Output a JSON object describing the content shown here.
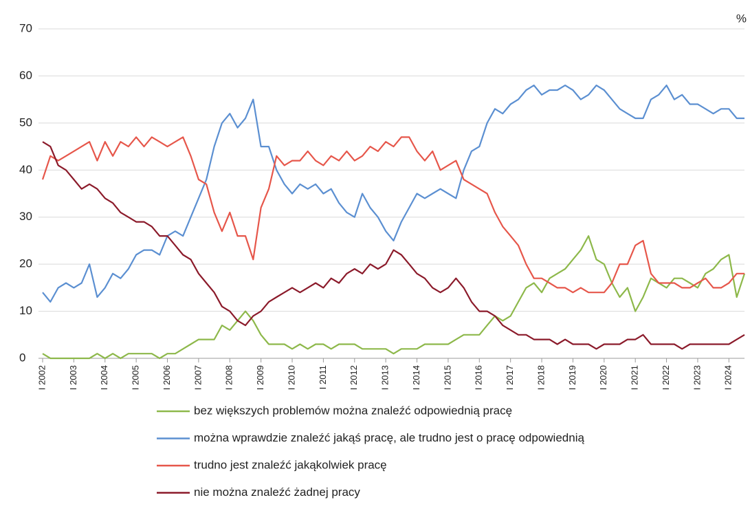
{
  "chart_data": {
    "type": "line",
    "unit_label": "%",
    "x": [
      2002,
      2002.25,
      2002.5,
      2002.75,
      2003,
      2003.25,
      2003.5,
      2003.75,
      2004,
      2004.25,
      2004.5,
      2004.75,
      2005,
      2005.25,
      2005.5,
      2005.75,
      2006,
      2006.25,
      2006.5,
      2006.75,
      2007,
      2007.25,
      2007.5,
      2007.75,
      2008,
      2008.25,
      2008.5,
      2008.75,
      2009,
      2009.25,
      2009.5,
      2009.75,
      2010,
      2010.25,
      2010.5,
      2010.75,
      2011,
      2011.25,
      2011.5,
      2011.75,
      2012,
      2012.25,
      2012.5,
      2012.75,
      2013,
      2013.25,
      2013.5,
      2013.75,
      2014,
      2014.25,
      2014.5,
      2014.75,
      2015,
      2015.25,
      2015.5,
      2015.75,
      2016,
      2016.25,
      2016.5,
      2016.75,
      2017,
      2017.25,
      2017.5,
      2017.75,
      2018,
      2018.25,
      2018.5,
      2018.75,
      2019,
      2019.25,
      2019.5,
      2019.75,
      2020,
      2020.25,
      2020.5,
      2020.75,
      2021,
      2021.25,
      2021.5,
      2021.75,
      2022,
      2022.25,
      2022.5,
      2022.75,
      2023,
      2023.25,
      2023.5,
      2023.75,
      2024,
      2024.25,
      2024.5
    ],
    "xlim": [
      2002,
      2024.5
    ],
    "xticks": [
      {
        "value": 2002,
        "label": "I 2002"
      },
      {
        "value": 2003,
        "label": "I 2003"
      },
      {
        "value": 2004,
        "label": "I 2004"
      },
      {
        "value": 2005,
        "label": "I 2005"
      },
      {
        "value": 2006,
        "label": "I 2006"
      },
      {
        "value": 2007,
        "label": "I 2007"
      },
      {
        "value": 2008,
        "label": "I 2008"
      },
      {
        "value": 2009,
        "label": "I 2009"
      },
      {
        "value": 2010,
        "label": "I 2010"
      },
      {
        "value": 2011,
        "label": "I 2011"
      },
      {
        "value": 2012,
        "label": "I 2012"
      },
      {
        "value": 2013,
        "label": "I 2013"
      },
      {
        "value": 2014,
        "label": "I 2014"
      },
      {
        "value": 2015,
        "label": "I 2015"
      },
      {
        "value": 2016,
        "label": "I 2016"
      },
      {
        "value": 2017,
        "label": "I 2017"
      },
      {
        "value": 2018,
        "label": "I 2018"
      },
      {
        "value": 2019,
        "label": "I 2019"
      },
      {
        "value": 2020,
        "label": "I 2020"
      },
      {
        "value": 2021,
        "label": "I 2021"
      },
      {
        "value": 2022,
        "label": "I 2022"
      },
      {
        "value": 2023,
        "label": "I 2023"
      },
      {
        "value": 2024,
        "label": "I 2024"
      }
    ],
    "ylim": [
      0,
      70
    ],
    "yticks": [
      0,
      10,
      20,
      30,
      40,
      50,
      60,
      70
    ],
    "grid": true,
    "series": [
      {
        "name": "bez większych problemów można znaleźć odpowiednią pracę",
        "color": "#8db84a",
        "values": [
          1,
          0,
          0,
          0,
          0,
          0,
          0,
          1,
          0,
          1,
          0,
          1,
          1,
          1,
          1,
          0,
          1,
          1,
          2,
          3,
          4,
          4,
          4,
          7,
          6,
          8,
          10,
          8,
          5,
          3,
          3,
          3,
          2,
          3,
          2,
          3,
          3,
          2,
          3,
          3,
          3,
          2,
          2,
          2,
          2,
          1,
          2,
          2,
          2,
          3,
          3,
          3,
          3,
          4,
          5,
          5,
          5,
          7,
          9,
          8,
          9,
          12,
          15,
          16,
          14,
          17,
          18,
          19,
          21,
          23,
          26,
          21,
          20,
          16,
          13,
          15,
          10,
          13,
          17,
          16,
          15,
          17,
          17,
          16,
          15,
          18,
          19,
          21,
          22,
          13,
          18
        ]
      },
      {
        "name": "można wprawdzie znaleźć jakąś pracę, ale trudno jest o pracę odpowiednią",
        "color": "#5b8fd1",
        "values": [
          14,
          12,
          15,
          16,
          15,
          16,
          20,
          13,
          15,
          18,
          17,
          19,
          22,
          23,
          23,
          22,
          26,
          27,
          26,
          30,
          34,
          38,
          45,
          50,
          52,
          49,
          51,
          55,
          45,
          45,
          40,
          37,
          35,
          37,
          36,
          37,
          35,
          36,
          33,
          31,
          30,
          35,
          32,
          30,
          27,
          25,
          29,
          32,
          35,
          34,
          35,
          36,
          35,
          34,
          40,
          44,
          45,
          50,
          53,
          52,
          54,
          55,
          57,
          58,
          56,
          57,
          57,
          58,
          57,
          55,
          56,
          58,
          57,
          55,
          53,
          52,
          51,
          51,
          55,
          56,
          58,
          55,
          56,
          54,
          54,
          53,
          52,
          53,
          53,
          51,
          51
        ]
      },
      {
        "name": "trudno jest znaleźć jakąkolwiek pracę",
        "color": "#e6564a",
        "values": [
          38,
          43,
          42,
          43,
          44,
          45,
          46,
          42,
          46,
          43,
          46,
          45,
          47,
          45,
          47,
          46,
          45,
          46,
          47,
          43,
          38,
          37,
          31,
          27,
          31,
          26,
          26,
          21,
          32,
          36,
          43,
          41,
          42,
          42,
          44,
          42,
          41,
          43,
          42,
          44,
          42,
          43,
          45,
          44,
          46,
          45,
          47,
          47,
          44,
          42,
          44,
          40,
          41,
          42,
          38,
          37,
          36,
          35,
          31,
          28,
          26,
          24,
          20,
          17,
          17,
          16,
          15,
          15,
          14,
          15,
          14,
          14,
          14,
          16,
          20,
          20,
          24,
          25,
          18,
          16,
          16,
          16,
          15,
          15,
          16,
          17,
          15,
          15,
          16,
          18,
          18
        ]
      },
      {
        "name": "nie można znaleźć żadnej pracy",
        "color": "#8b1a2a",
        "values": [
          46,
          45,
          41,
          40,
          38,
          36,
          37,
          36,
          34,
          33,
          31,
          30,
          29,
          29,
          28,
          26,
          26,
          24,
          22,
          21,
          18,
          16,
          14,
          11,
          10,
          8,
          7,
          9,
          10,
          12,
          13,
          14,
          15,
          14,
          15,
          16,
          15,
          17,
          16,
          18,
          19,
          18,
          20,
          19,
          20,
          23,
          22,
          20,
          18,
          17,
          15,
          14,
          15,
          17,
          15,
          12,
          10,
          10,
          9,
          7,
          6,
          5,
          5,
          4,
          4,
          4,
          3,
          4,
          3,
          3,
          3,
          2,
          3,
          3,
          3,
          4,
          4,
          5,
          3,
          3,
          3,
          3,
          2,
          3,
          3,
          3,
          3,
          3,
          3,
          4,
          5
        ]
      }
    ]
  }
}
